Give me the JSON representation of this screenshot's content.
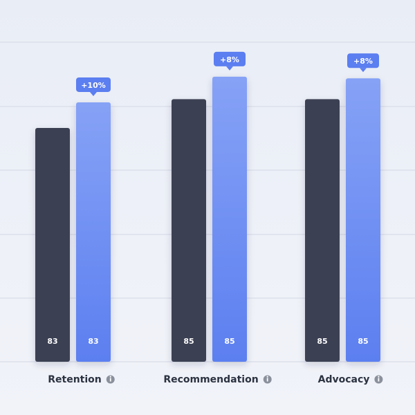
{
  "chart_data": {
    "type": "bar",
    "categories": [
      "Retention",
      "Recommendation",
      "Advocacy"
    ],
    "series": [
      {
        "values": [
          73,
          82,
          82
        ],
        "labels": [
          "83",
          "85",
          "85"
        ]
      },
      {
        "values": [
          81,
          89,
          88.5
        ],
        "labels": [
          "83",
          "85",
          "85"
        ]
      }
    ],
    "badges": [
      "+10%",
      "+8%",
      "+8%"
    ],
    "ylim": [
      0,
      100
    ],
    "grid": true,
    "colors": {
      "series_dark": "#3a4152",
      "series_blue_top": "#86a2f6",
      "series_blue_bottom": "#5c7ff0",
      "badge": "#5b7ef0",
      "grid": "#d3d8e4",
      "label": "#2b3240",
      "info_icon": "#8a909c"
    },
    "info_icon": "info-circle-icon"
  }
}
